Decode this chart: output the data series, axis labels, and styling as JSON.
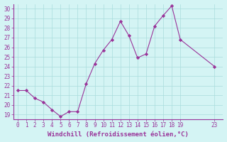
{
  "x": [
    0,
    1,
    2,
    3,
    4,
    5,
    6,
    7,
    8,
    9,
    10,
    11,
    12,
    13,
    14,
    15,
    16,
    17,
    18,
    19,
    23
  ],
  "y": [
    21.5,
    21.5,
    20.7,
    20.3,
    19.5,
    18.8,
    19.3,
    19.3,
    22.2,
    24.3,
    25.7,
    26.8,
    28.7,
    27.2,
    24.9,
    25.3,
    28.2,
    29.3,
    30.3,
    26.8,
    24.0
  ],
  "line_color": "#993399",
  "marker_color": "#993399",
  "bg_color": "#d4f4f4",
  "grid_color": "#aadddd",
  "xlabel": "Windchill (Refroidissement éolien,°C)",
  "xlabel_color": "#993399",
  "axis_line_color": "#993399",
  "ylim_min": 18.5,
  "ylim_max": 30.5,
  "xlim_min": -0.5,
  "xlim_max": 24.0,
  "yticks": [
    19,
    20,
    21,
    22,
    23,
    24,
    25,
    26,
    27,
    28,
    29,
    30
  ],
  "xticks": [
    0,
    1,
    2,
    3,
    4,
    5,
    6,
    7,
    8,
    9,
    10,
    11,
    12,
    13,
    14,
    15,
    16,
    17,
    18,
    19,
    23
  ],
  "tick_fontsize": 5.5,
  "xlabel_fontsize": 6.5,
  "figwidth": 3.2,
  "figheight": 2.0,
  "dpi": 100
}
